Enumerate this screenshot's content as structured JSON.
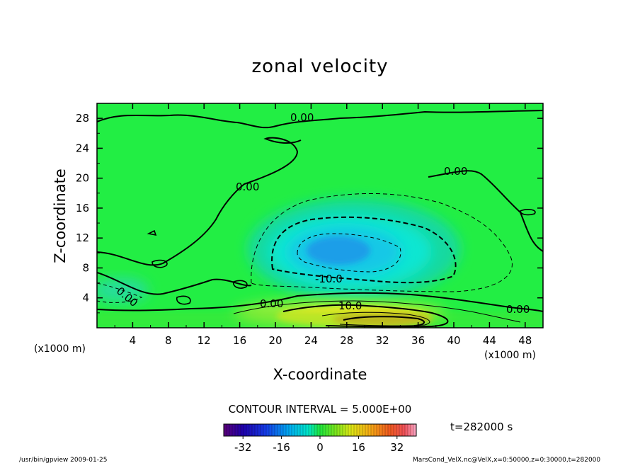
{
  "chart_data": {
    "type": "heatmap",
    "title": "zonal velocity",
    "xlabel": "X-coordinate",
    "ylabel": "Z-coordinate",
    "x_unit": "(x1000 m)",
    "y_unit": "(x1000 m)",
    "xlim": [
      0,
      50
    ],
    "ylim": [
      0,
      30
    ],
    "x_ticks": [
      "4",
      "8",
      "12",
      "16",
      "20",
      "24",
      "28",
      "32",
      "36",
      "40",
      "44",
      "48"
    ],
    "y_ticks": [
      "4",
      "8",
      "12",
      "16",
      "20",
      "24",
      "28"
    ],
    "contour_interval": "CONTOUR INTERVAL = 5.000E+00",
    "time": "t=282000 s",
    "colorbar": {
      "min": -40,
      "max": 40,
      "ticks": [
        "-32",
        "-16",
        "0",
        "16",
        "32"
      ]
    },
    "contour_labels": [
      {
        "text": "0.00",
        "x": 23.5,
        "z": 28.5
      },
      {
        "text": "0.00",
        "x": 17.5,
        "z": 18.8
      },
      {
        "text": "0.00",
        "x": 40.5,
        "z": 20.2
      },
      {
        "text": "0.00",
        "x": 4.0,
        "z": 5.5
      },
      {
        "text": "0.00",
        "x": 19.7,
        "z": 3.2
      },
      {
        "text": "0.00",
        "x": 47.0,
        "z": 2.6
      },
      {
        "text": "-10.0",
        "x": 26.5,
        "z": 6.6
      },
      {
        "text": "10.0",
        "x": 28.0,
        "z": 2.9
      }
    ],
    "field_features": [
      {
        "kind": "minimum",
        "x": 28.5,
        "z": 10.5,
        "value": -18
      },
      {
        "kind": "maximum",
        "x": 30.5,
        "z": 1.2,
        "value": 22
      }
    ],
    "grid": false
  },
  "footer": {
    "left": "/usr/bin/gpview   2009-01-25",
    "right": "MarsCond_VelX.nc@VelX,x=0:50000,z=0:30000,t=282000"
  },
  "colors": {
    "background": "#00ff33",
    "frame": "#000000"
  }
}
